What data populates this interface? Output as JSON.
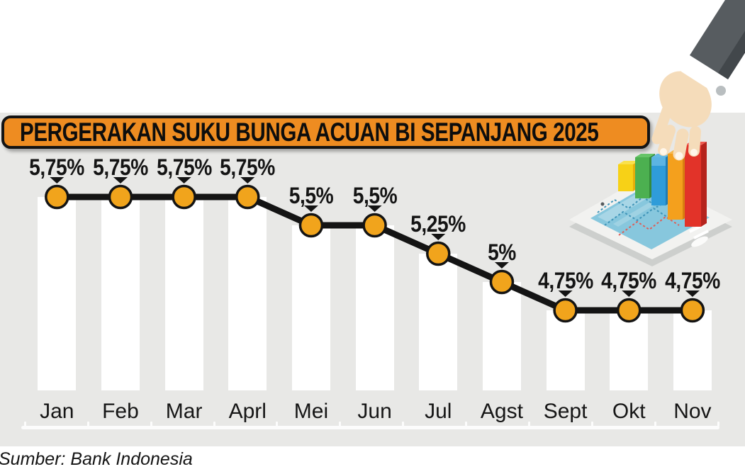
{
  "title": {
    "label": "PERGERAKAN SUKU BUNGA ACUAN BI SEPANJANG 2025"
  },
  "source": {
    "label": "Sumber: Bank Indonesia"
  },
  "chart_data": {
    "type": "line",
    "title": "PERGERAKAN SUKU BUNGA ACUAN BI SEPANJANG 2025",
    "categories": [
      "Jan",
      "Feb",
      "Mar",
      "Aprl",
      "Mei",
      "Jun",
      "Jul",
      "Agst",
      "Sept",
      "Okt",
      "Nov"
    ],
    "values": [
      5.75,
      5.75,
      5.75,
      5.75,
      5.5,
      5.5,
      5.25,
      5.0,
      4.75,
      4.75,
      4.75
    ],
    "point_labels": [
      "5,75%",
      "5,75%",
      "5,75%",
      "5,75%",
      "5,5%",
      "5,5%",
      "5,25%",
      "5%",
      "4,75%",
      "4,75%",
      "4,75%"
    ],
    "unit": "%",
    "ylim": [
      4.2,
      6.0
    ],
    "grid": false,
    "legend": "none",
    "line_color": "#141414",
    "marker_color": "#f1a41c",
    "marker_stroke": "#141414",
    "column_color": "#ffffff",
    "background_color": "#e8e8e6",
    "axis_color": "#fcfcfc",
    "label_color": "#141414"
  },
  "style": {
    "title_bg": "#ee8c21",
    "title_border": "#141414",
    "page_bg": "#ffffff"
  },
  "illustration": {
    "name": "hand-in-suit-picking-red-bar-from-tablet-3d-bar-chart",
    "bar_colors": [
      "#f7d117",
      "#4cb050",
      "#2f9cd9",
      "#f4a01d",
      "#e23329"
    ],
    "tablet_body_color": "#f2f2f0",
    "tablet_screen_color": "#87c7dd",
    "sleeve_color": "#575c60",
    "cuff_color": "#ffffff",
    "skin_color": "#f5dcba"
  }
}
